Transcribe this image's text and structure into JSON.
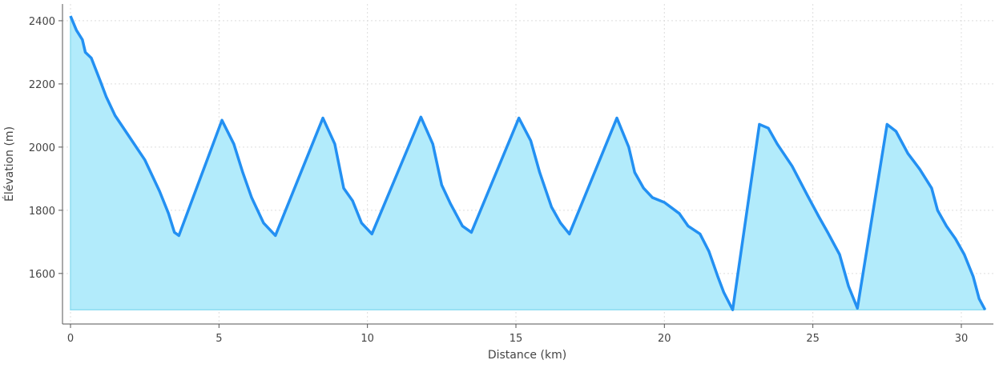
{
  "chart_data": {
    "type": "area",
    "xlabel": "Distance (km)",
    "ylabel": "Élévation (m)",
    "x": [
      0,
      0.2,
      0.4,
      0.5,
      0.7,
      1.0,
      1.2,
      1.5,
      2.0,
      2.5,
      3.0,
      3.3,
      3.5,
      3.65,
      5.1,
      5.5,
      5.8,
      6.1,
      6.5,
      6.9,
      8.5,
      8.9,
      9.2,
      9.5,
      9.8,
      10.15,
      11.8,
      12.2,
      12.5,
      12.8,
      13.2,
      13.5,
      15.1,
      15.5,
      15.8,
      16.2,
      16.5,
      16.8,
      18.4,
      18.8,
      19.0,
      19.3,
      19.6,
      20.0,
      20.5,
      20.8,
      21.2,
      21.5,
      21.8,
      22.0,
      22.3,
      23.2,
      23.5,
      23.8,
      24.3,
      24.8,
      25.2,
      25.5,
      25.9,
      26.2,
      26.5,
      27.5,
      27.8,
      28.2,
      28.6,
      29.0,
      29.2,
      29.5,
      29.8,
      30.1,
      30.4,
      30.6,
      30.8
    ],
    "series": [
      {
        "color": "#2390f2",
        "fill": "#b2ebfb",
        "values": [
          2415,
          2370,
          2340,
          2300,
          2282,
          2210,
          2160,
          2100,
          2030,
          1960,
          1860,
          1790,
          1730,
          1720,
          2085,
          2010,
          1920,
          1840,
          1760,
          1720,
          2092,
          2010,
          1870,
          1830,
          1760,
          1725,
          2095,
          2010,
          1880,
          1820,
          1750,
          1730,
          2092,
          2020,
          1920,
          1810,
          1760,
          1725,
          2092,
          2000,
          1920,
          1870,
          1840,
          1825,
          1790,
          1750,
          1725,
          1670,
          1590,
          1540,
          1485,
          2072,
          2060,
          2010,
          1940,
          1850,
          1780,
          1730,
          1660,
          1560,
          1490,
          2072,
          2050,
          1980,
          1930,
          1870,
          1800,
          1750,
          1710,
          1660,
          1590,
          1520,
          1485
        ]
      }
    ],
    "xlim": [
      -0.27,
      31.08
    ],
    "ylim": [
      1440,
      2453
    ],
    "xticks": [
      0,
      5,
      10,
      15,
      20,
      25,
      30
    ],
    "yticks": [
      1600,
      1800,
      2000,
      2200,
      2400
    ],
    "grid": true
  }
}
